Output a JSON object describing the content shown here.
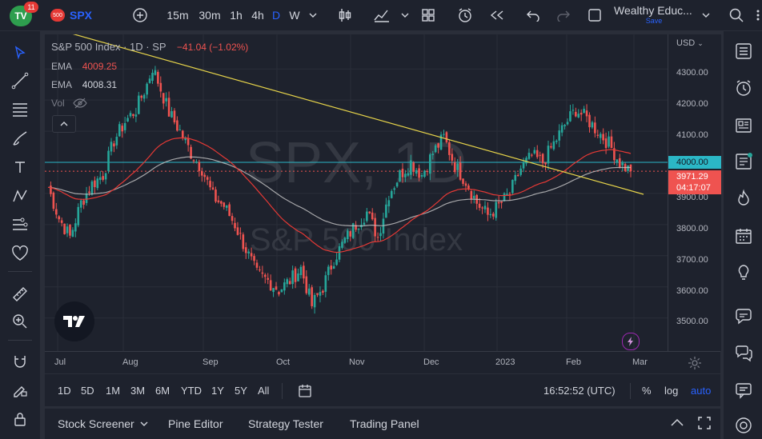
{
  "app": {
    "notification_count": "11",
    "logo_text": "TV",
    "symbol_badge": "500",
    "symbol": "SPX",
    "intervals": [
      "15m",
      "30m",
      "1h",
      "4h",
      "D",
      "W"
    ],
    "active_interval": "D",
    "layout_name": "Wealthy Educ...",
    "layout_status": "Save"
  },
  "legend": {
    "title": "S&P 500 Index · 1D · SP",
    "change": "−41.04 (−1.02%)",
    "ema1_label": "EMA",
    "ema1_value": "4009.25",
    "ema2_label": "EMA",
    "ema2_value": "4008.31",
    "vol_label": "Vol"
  },
  "watermark": {
    "symbol": "SPX, 1D",
    "name": "S&P 500 Index"
  },
  "price_axis": {
    "currency": "USD",
    "ticks": [
      "4300.00",
      "4200.00",
      "4100.00",
      "4000.00",
      "3900.00",
      "3800.00",
      "3700.00",
      "3600.00",
      "3500.00"
    ],
    "highlight_level": "4000.00",
    "last_price": "3971.29",
    "countdown": "04:17:07"
  },
  "time_axis": {
    "ticks": [
      "Jul",
      "Aug",
      "Sep",
      "Oct",
      "Nov",
      "Dec",
      "2023",
      "Feb",
      "Mar"
    ]
  },
  "range_bar": {
    "ranges": [
      "1D",
      "5D",
      "1M",
      "3M",
      "6M",
      "YTD",
      "1Y",
      "5Y",
      "All"
    ],
    "clock": "16:52:52 (UTC)",
    "percent": "%",
    "log": "log",
    "auto": "auto"
  },
  "bottom_tabs": {
    "tabs": [
      "Stock Screener",
      "Pine Editor",
      "Strategy Tester",
      "Trading Panel"
    ]
  },
  "colors": {
    "up": "#26a69a",
    "down": "#ef5350",
    "ema_fast": "#e53935",
    "ema_slow": "#c7c7c7",
    "trendline": "#e6d34a",
    "level_line": "#2bb7c6",
    "accent": "#2962ff"
  },
  "chart_data": {
    "type": "candlestick",
    "symbol": "SPX",
    "interval": "1D",
    "ylim": [
      3440,
      4380
    ],
    "x_ticks": [
      "Jul",
      "Aug",
      "Sep",
      "Oct",
      "Nov",
      "Dec",
      "2023",
      "Feb",
      "Mar"
    ],
    "close_path": [
      [
        0,
        3920
      ],
      [
        4,
        3820
      ],
      [
        8,
        3760
      ],
      [
        12,
        3870
      ],
      [
        16,
        3930
      ],
      [
        20,
        3960
      ],
      [
        24,
        4070
      ],
      [
        28,
        4130
      ],
      [
        32,
        4170
      ],
      [
        36,
        4250
      ],
      [
        38,
        4305
      ],
      [
        40,
        4260
      ],
      [
        44,
        4160
      ],
      [
        48,
        4100
      ],
      [
        52,
        4030
      ],
      [
        56,
        3980
      ],
      [
        60,
        3890
      ],
      [
        64,
        3860
      ],
      [
        68,
        3800
      ],
      [
        72,
        3720
      ],
      [
        76,
        3640
      ],
      [
        80,
        3620
      ],
      [
        84,
        3590
      ],
      [
        88,
        3620
      ],
      [
        92,
        3660
      ],
      [
        96,
        3540
      ],
      [
        100,
        3600
      ],
      [
        104,
        3690
      ],
      [
        108,
        3750
      ],
      [
        112,
        3800
      ],
      [
        116,
        3840
      ],
      [
        120,
        3760
      ],
      [
        124,
        3900
      ],
      [
        128,
        3960
      ],
      [
        132,
        4000
      ],
      [
        136,
        3960
      ],
      [
        140,
        4030
      ],
      [
        144,
        4080
      ],
      [
        148,
        3990
      ],
      [
        152,
        3940
      ],
      [
        156,
        3870
      ],
      [
        160,
        3830
      ],
      [
        164,
        3860
      ],
      [
        168,
        3900
      ],
      [
        172,
        3980
      ],
      [
        176,
        4020
      ],
      [
        180,
        4000
      ],
      [
        184,
        4060
      ],
      [
        188,
        4120
      ],
      [
        192,
        4170
      ],
      [
        196,
        4140
      ],
      [
        200,
        4100
      ],
      [
        204,
        4060
      ],
      [
        208,
        4000
      ],
      [
        212,
        3971
      ]
    ],
    "ema_fast_label": "EMA 4009.25",
    "ema_slow_label": "EMA 4008.31",
    "last_price": 3971.29,
    "level": 4000
  }
}
